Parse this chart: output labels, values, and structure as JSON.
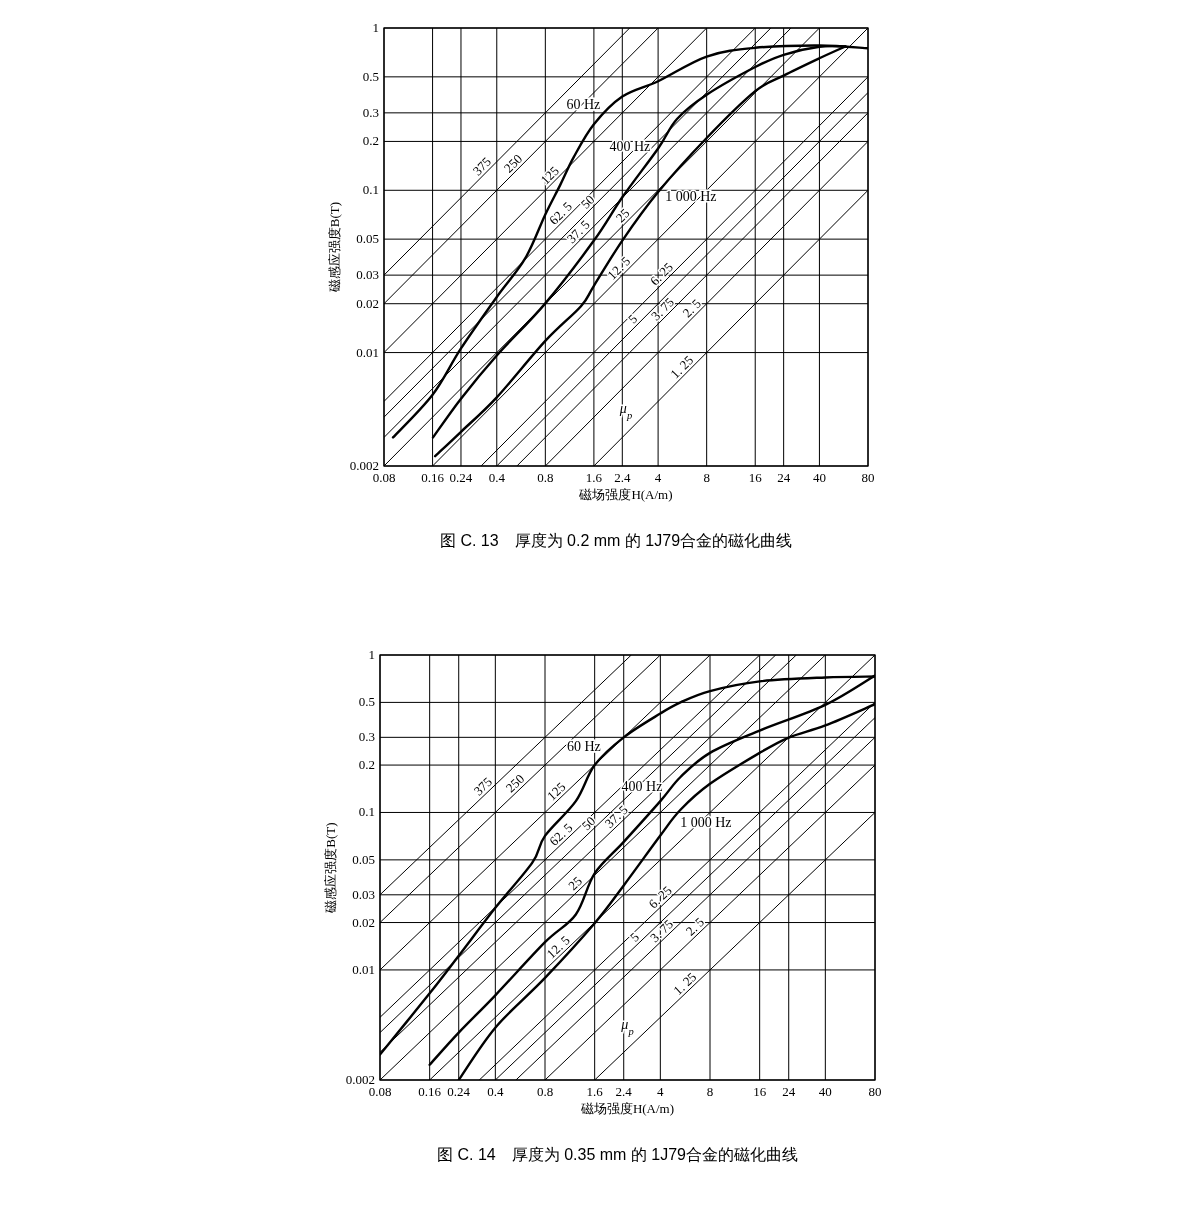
{
  "chart_data": [
    {
      "type": "line",
      "log": "xy",
      "grid": true,
      "line_style": "solid",
      "xlabel": "磁场强度H(A/m)",
      "ylabel": "磁感应强度B(T)",
      "xlim": [
        0.08,
        80
      ],
      "ylim": [
        0.002,
        1
      ],
      "xticks": [
        0.08,
        0.16,
        0.24,
        0.4,
        0.8,
        1.6,
        2.4,
        4,
        8,
        16,
        24,
        40,
        80
      ],
      "yticks": [
        0.002,
        0.01,
        0.02,
        0.03,
        0.05,
        0.1,
        0.2,
        0.3,
        0.5,
        1
      ],
      "series": [
        {
          "name": "60 Hz",
          "color": "#000000",
          "x": [
            0.091,
            0.16,
            0.24,
            0.4,
            0.6,
            0.8,
            0.99,
            1.2,
            1.6,
            2.4,
            4,
            8,
            16,
            40,
            80
          ],
          "values": [
            0.003,
            0.0055,
            0.0106,
            0.022,
            0.038,
            0.071,
            0.108,
            0.16,
            0.255,
            0.378,
            0.47,
            0.667,
            0.755,
            0.78,
            0.75
          ]
        },
        {
          "name": "400 Hz",
          "color": "#000000",
          "x": [
            0.161,
            0.24,
            0.4,
            0.8,
            1.6,
            2.4,
            4,
            5.24,
            8,
            16,
            24,
            40,
            58
          ],
          "values": [
            0.003,
            0.0052,
            0.0096,
            0.0201,
            0.049,
            0.0906,
            0.181,
            0.275,
            0.388,
            0.575,
            0.684,
            0.766,
            0.77
          ]
        },
        {
          "name": "1 000 Hz",
          "color": "#000000",
          "x": [
            0.166,
            0.24,
            0.4,
            0.8,
            1.33,
            1.6,
            2.4,
            4,
            8,
            16,
            24,
            40,
            58
          ],
          "values": [
            0.0023,
            0.00325,
            0.0053,
            0.0118,
            0.0193,
            0.0258,
            0.049,
            0.0975,
            0.21,
            0.408,
            0.509,
            0.651,
            0.77
          ]
        },
        {
          "name": "375",
          "color": "#000000",
          "x": [
            0.08,
            2.667
          ],
          "values": [
            0.03,
            1
          ]
        },
        {
          "name": "250",
          "color": "#000000",
          "x": [
            0.08,
            4
          ],
          "values": [
            0.02,
            1
          ]
        },
        {
          "name": "125",
          "color": "#000000",
          "x": [
            0.08,
            8
          ],
          "values": [
            0.01,
            1
          ]
        },
        {
          "name": "62. 5",
          "color": "#000000",
          "x": [
            0.08,
            16
          ],
          "values": [
            0.005,
            1
          ]
        },
        {
          "name": "50",
          "color": "#000000",
          "x": [
            0.08,
            20
          ],
          "values": [
            0.004,
            1
          ]
        },
        {
          "name": "37. 5",
          "color": "#000000",
          "x": [
            0.08,
            26.67
          ],
          "values": [
            0.003,
            1
          ]
        },
        {
          "name": "25",
          "color": "#000000",
          "x": [
            0.08,
            40
          ],
          "values": [
            0.002,
            1
          ]
        },
        {
          "name": "12. 5",
          "color": "#000000",
          "x": [
            0.16,
            80
          ],
          "values": [
            0.002,
            1
          ]
        },
        {
          "name": "6. 25",
          "color": "#000000",
          "x": [
            0.32,
            80
          ],
          "values": [
            0.002,
            0.5
          ]
        },
        {
          "name": "5",
          "color": "#000000",
          "x": [
            0.4,
            80
          ],
          "values": [
            0.002,
            0.4
          ]
        },
        {
          "name": "3. 75",
          "color": "#000000",
          "x": [
            0.5333,
            80
          ],
          "values": [
            0.002,
            0.3
          ]
        },
        {
          "name": "2. 5",
          "color": "#000000",
          "x": [
            0.8,
            80
          ],
          "values": [
            0.002,
            0.2
          ]
        },
        {
          "name": "1. 25",
          "color": "#000000",
          "x": [
            1.6,
            80
          ],
          "values": [
            0.002,
            0.1
          ]
        }
      ],
      "annotations": [
        "μ$_{p}$",
        "图 C. 13　厚度为 0.2 mm 的 1J79合金的磁化曲线"
      ]
    },
    {
      "type": "line",
      "log": "xy",
      "grid": true,
      "line_style": "solid",
      "xlabel": "磁场强度H(A/m)",
      "ylabel": "磁感应强度B(T)",
      "xlim": [
        0.08,
        80
      ],
      "ylim": [
        0.002,
        1
      ],
      "xticks": [
        0.08,
        0.16,
        0.24,
        0.4,
        0.8,
        1.6,
        2.4,
        4,
        8,
        16,
        24,
        40,
        80
      ],
      "yticks": [
        0.002,
        0.01,
        0.02,
        0.03,
        0.05,
        0.1,
        0.2,
        0.3,
        0.5,
        1
      ],
      "series": [
        {
          "name": "60 Hz",
          "color": "#000000",
          "x": [
            0.08,
            0.16,
            0.24,
            0.4,
            0.67,
            0.8,
            1.23,
            1.6,
            2.4,
            4,
            5.3,
            8,
            16,
            40,
            80
          ],
          "values": [
            0.0029,
            0.0071,
            0.0123,
            0.0248,
            0.048,
            0.071,
            0.118,
            0.2,
            0.3,
            0.425,
            0.5,
            0.59,
            0.68,
            0.72,
            0.73
          ]
        },
        {
          "name": "400 Hz",
          "color": "#000000",
          "x": [
            0.16,
            0.24,
            0.4,
            0.8,
            1.23,
            1.6,
            2.4,
            4,
            5.3,
            8,
            16,
            40,
            80
          ],
          "values": [
            0.0025,
            0.004,
            0.0069,
            0.015,
            0.0225,
            0.041,
            0.065,
            0.118,
            0.168,
            0.239,
            0.331,
            0.482,
            0.74
          ]
        },
        {
          "name": "1 000 Hz",
          "color": "#000000",
          "x": [
            0.24,
            0.4,
            0.8,
            1.6,
            2.4,
            4,
            5.3,
            8,
            16,
            24,
            40,
            80
          ],
          "values": [
            0.002,
            0.0043,
            0.0089,
            0.0198,
            0.0344,
            0.0714,
            0.104,
            0.152,
            0.239,
            0.299,
            0.357,
            0.487
          ]
        },
        {
          "name": "375",
          "color": "#000000",
          "x": [
            0.08,
            2.667
          ],
          "values": [
            0.03,
            1
          ]
        },
        {
          "name": "250",
          "color": "#000000",
          "x": [
            0.08,
            4
          ],
          "values": [
            0.02,
            1
          ]
        },
        {
          "name": "125",
          "color": "#000000",
          "x": [
            0.08,
            8
          ],
          "values": [
            0.01,
            1
          ]
        },
        {
          "name": "62. 5",
          "color": "#000000",
          "x": [
            0.08,
            16
          ],
          "values": [
            0.005,
            1
          ]
        },
        {
          "name": "50",
          "color": "#000000",
          "x": [
            0.08,
            20
          ],
          "values": [
            0.004,
            1
          ]
        },
        {
          "name": "37. 5",
          "color": "#000000",
          "x": [
            0.08,
            26.67
          ],
          "values": [
            0.003,
            1
          ]
        },
        {
          "name": "25",
          "color": "#000000",
          "x": [
            0.08,
            40
          ],
          "values": [
            0.002,
            1
          ]
        },
        {
          "name": "12. 5",
          "color": "#000000",
          "x": [
            0.16,
            80
          ],
          "values": [
            0.002,
            1
          ]
        },
        {
          "name": "6. 25",
          "color": "#000000",
          "x": [
            0.32,
            80
          ],
          "values": [
            0.002,
            0.5
          ]
        },
        {
          "name": "5",
          "color": "#000000",
          "x": [
            0.4,
            80
          ],
          "values": [
            0.002,
            0.4
          ]
        },
        {
          "name": "3. 75",
          "color": "#000000",
          "x": [
            0.5333,
            80
          ],
          "values": [
            0.002,
            0.3
          ]
        },
        {
          "name": "2. 5",
          "color": "#000000",
          "x": [
            0.8,
            80
          ],
          "values": [
            0.002,
            0.2
          ]
        },
        {
          "name": "1. 25",
          "color": "#000000",
          "x": [
            1.6,
            80
          ],
          "values": [
            0.002,
            0.1
          ]
        }
      ],
      "annotations": [
        "μ$_{p}$",
        "图 C. 14　厚度为 0.35 mm 的 1J79合金的磁化曲线"
      ]
    }
  ]
}
